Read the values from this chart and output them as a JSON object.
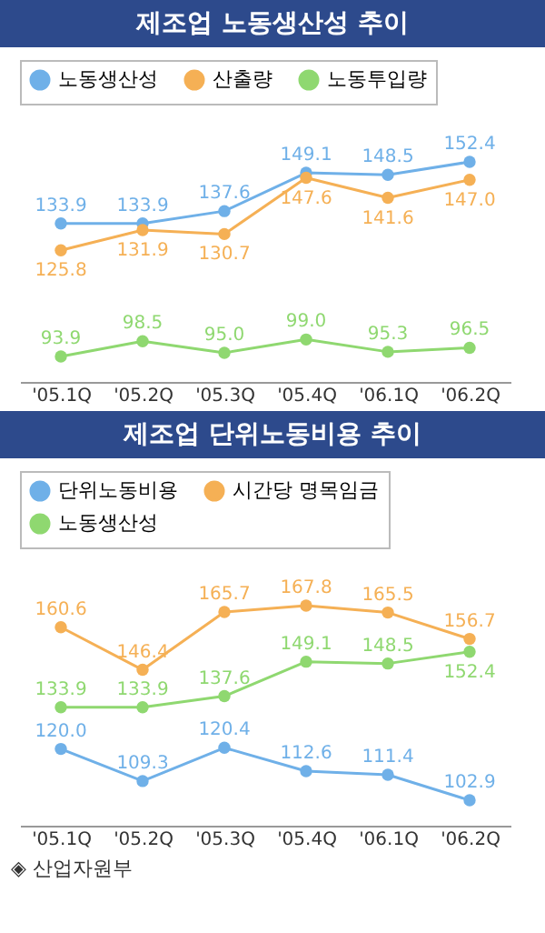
{
  "chart_data": [
    {
      "type": "line",
      "title": "제조업 노동생산성 추이",
      "categories": [
        "'05.1Q",
        "'05.2Q",
        "'05.3Q",
        "'05.4Q",
        "'06.1Q",
        "'06.2Q"
      ],
      "series": [
        {
          "name": "노동생산성",
          "color": "#6fb0e8",
          "values": [
            133.9,
            133.9,
            137.6,
            149.1,
            148.5,
            152.4
          ],
          "value_labels": [
            "133.9",
            "133.9",
            "137.6",
            "149.1",
            "148.5",
            "152.4"
          ]
        },
        {
          "name": "산출량",
          "color": "#f5b055",
          "values": [
            125.8,
            131.9,
            130.7,
            147.6,
            141.6,
            147.0
          ],
          "value_labels": [
            "125.8",
            "131.9",
            "130.7",
            "147.6",
            "141.6",
            "147.0"
          ]
        },
        {
          "name": "노동투입량",
          "color": "#8fd870",
          "values": [
            93.9,
            98.5,
            95.0,
            99.0,
            95.3,
            96.5
          ],
          "value_labels": [
            "93.9",
            "98.5",
            "95.0",
            "99.0",
            "95.3",
            "96.5"
          ]
        }
      ],
      "legend": "top",
      "marker": "circle",
      "line_style": "solid",
      "tick_labels": "x",
      "grid": false
    },
    {
      "type": "line",
      "title": "제조업 단위노동비용 추이",
      "categories": [
        "'05.1Q",
        "'05.2Q",
        "'05.3Q",
        "'05.4Q",
        "'06.1Q",
        "'06.2Q"
      ],
      "series": [
        {
          "name": "단위노동비용",
          "color": "#6fb0e8",
          "values": [
            120.0,
            109.3,
            120.4,
            112.6,
            111.4,
            102.9
          ],
          "value_labels": [
            "120.0",
            "109.3",
            "120.4",
            "112.6",
            "111.4",
            "102.9"
          ]
        },
        {
          "name": "시간당 명목임금",
          "color": "#f5b055",
          "values": [
            160.6,
            146.4,
            165.7,
            167.8,
            165.5,
            156.7
          ],
          "value_labels": [
            "160.6",
            "146.4",
            "165.7",
            "167.8",
            "165.5",
            "156.7"
          ]
        },
        {
          "name": "노동생산성",
          "color": "#8fd870",
          "values": [
            133.9,
            133.9,
            137.6,
            149.1,
            148.5,
            152.4
          ],
          "value_labels": [
            "133.9",
            "133.9",
            "137.6",
            "149.1",
            "148.5",
            "152.4"
          ]
        }
      ],
      "legend": "top",
      "marker": "circle",
      "line_style": "solid",
      "tick_labels": "x",
      "grid": false,
      "annotations": [
        "◈ 산업자원부"
      ]
    }
  ]
}
